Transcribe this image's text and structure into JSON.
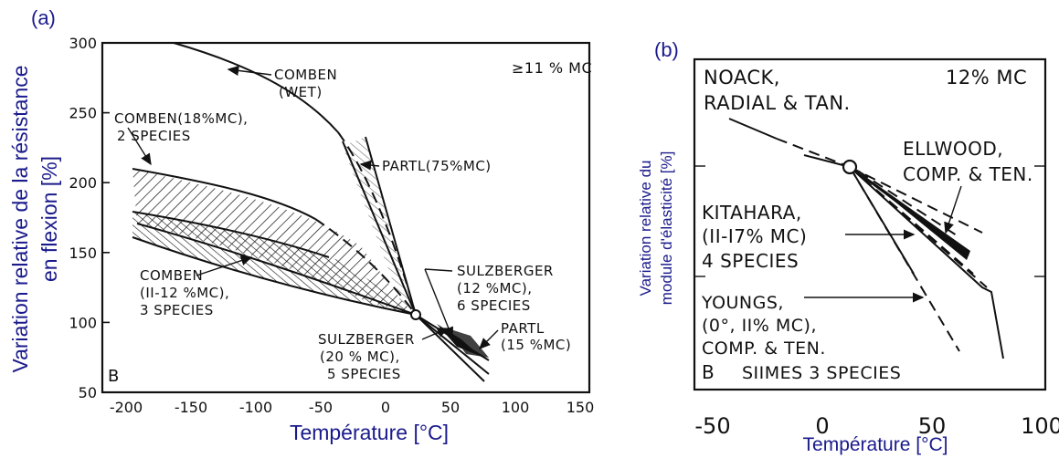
{
  "chart_data": [
    {
      "type": "line",
      "panel_label": "(a)",
      "xlabel": "Température [°C]",
      "ylabel_line1": "Variation relative de la résistance",
      "ylabel_line2": "en flexion [%]",
      "xlim": [
        -200,
        150
      ],
      "ylim": [
        50,
        300
      ],
      "x_ticks": [
        "-200",
        "-150",
        "-100",
        "-50",
        "0",
        "50",
        "100",
        "150"
      ],
      "y_ticks": [
        "300",
        "250",
        "200",
        "150",
        "100",
        "50"
      ],
      "corner_letter": "B",
      "condition": "≥11 % MC",
      "reference_point": {
        "x": 20,
        "y": 100
      },
      "series": [
        {
          "name": "COMBEN (WET)",
          "points": [
            [
              -150,
              300
            ],
            [
              -100,
              275
            ],
            [
              -50,
              230
            ],
            [
              0,
              160
            ],
            [
              20,
              105
            ]
          ]
        },
        {
          "name": "COMBEN (18 % MC), 2 SPECIES",
          "points": [
            [
              -190,
              225
            ],
            [
              -100,
              205
            ],
            [
              -50,
              180
            ],
            [
              0,
              140
            ],
            [
              20,
              105
            ]
          ]
        },
        {
          "name": "PARTL (75 % MC)",
          "points": [
            [
              -30,
              225
            ],
            [
              0,
              180
            ],
            [
              20,
              105
            ]
          ]
        },
        {
          "name": "COMBEN (11-12 % MC), 3 SPECIES",
          "points": [
            [
              -190,
              175
            ],
            [
              -100,
              150
            ],
            [
              -50,
              130
            ],
            [
              0,
              110
            ],
            [
              20,
              105
            ]
          ]
        },
        {
          "name": "SULZBERGER (12 % MC), 6 SPECIES",
          "points": [
            [
              20,
              100
            ],
            [
              40,
              90
            ],
            [
              70,
              65
            ]
          ]
        },
        {
          "name": "SULZBERGER (20 % MC), 5 SPECIES",
          "points": [
            [
              20,
              100
            ],
            [
              40,
              85
            ],
            [
              70,
              58
            ]
          ]
        },
        {
          "name": "PARTL (15 % MC)",
          "points": [
            [
              20,
              100
            ],
            [
              50,
              80
            ],
            [
              70,
              72
            ]
          ]
        }
      ],
      "annotations": {
        "comben_wet_1": "COMBEN",
        "comben_wet_2": "(WET)",
        "comben18_1": "COMBEN(18%MC),",
        "comben18_2": "2 SPECIES",
        "partl75": "PARTL(75%MC)",
        "comben11_1": "COMBEN",
        "comben11_2": "(II-12 %MC),",
        "comben11_3": "3 SPECIES",
        "sulz12_1": "SULZBERGER",
        "sulz12_2": "(12 %MC),",
        "sulz12_3": "6 SPECIES",
        "sulz20_1": "SULZBERGER",
        "sulz20_2": "(20 % MC),",
        "sulz20_3": "5 SPECIES",
        "partl15_1": "PARTL",
        "partl15_2": "(15 %MC)"
      }
    },
    {
      "type": "line",
      "panel_label": "(b)",
      "xlabel": "Température [°C]",
      "ylabel_line1": "Variation relative du",
      "ylabel_line2": "module d'élasticité [%]",
      "xlim": [
        -50,
        100
      ],
      "x_ticks": [
        "-50",
        "0",
        "50",
        "100"
      ],
      "corner_letter": "B",
      "condition": "12% MC",
      "reference_point": {
        "x": 20,
        "y": 100
      },
      "series": [
        {
          "name": "NOACK, RADIAL & TAN.",
          "points": [
            [
              -40,
              120
            ],
            [
              20,
              100
            ]
          ]
        },
        {
          "name": "ELLWOOD, COMP. & TEN.",
          "points": [
            [
              20,
              100
            ],
            [
              70,
              80
            ]
          ]
        },
        {
          "name": "KITAHARA, (11-17% MC) 4 SPECIES",
          "points": [
            [
              20,
              100
            ],
            [
              65,
              82
            ]
          ]
        },
        {
          "name": "YOUNGS, (0°, 11% MC), COMP. & TEN.",
          "points": [
            [
              20,
              100
            ],
            [
              85,
              60
            ]
          ]
        },
        {
          "name": "SIIMES 3 SPECIES",
          "points": [
            [
              20,
              100
            ],
            [
              90,
              55
            ]
          ]
        }
      ],
      "annotations": {
        "noack_1": "NOACK,",
        "noack_2": "RADIAL & TAN.",
        "ellwood_1": "ELLWOOD,",
        "ellwood_2": "COMP. & TEN.",
        "kitahara_1": "KITAHARA,",
        "kitahara_2": "(II-I7% MC)",
        "kitahara_3": "4 SPECIES",
        "youngs_1": "YOUNGS,",
        "youngs_2": "(0°, II% MC),",
        "youngs_3": "COMP. & TEN.",
        "siimes": "SIIMES 3 SPECIES"
      }
    }
  ]
}
